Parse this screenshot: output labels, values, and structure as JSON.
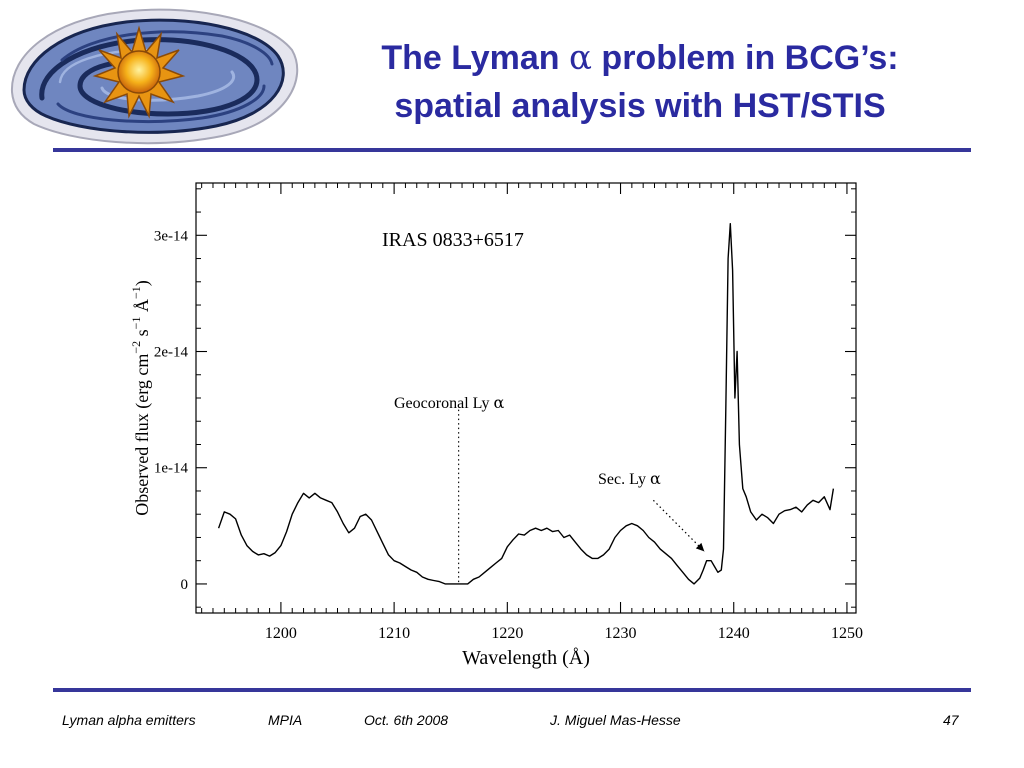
{
  "slide": {
    "title_line1_pre": "The Lyman ",
    "title_line1_symbol": "α",
    "title_line1_post": " problem in BCG’s:",
    "title_line2": "spatial analysis with HST/STIS"
  },
  "footer": {
    "topic": "Lyman alpha emitters",
    "institute": "MPIA",
    "date": "Oct. 6th 2008",
    "author": "J. Miguel Mas-Hesse",
    "page": "47"
  },
  "colors": {
    "accent": "#2a2aa0",
    "rule": "#36369a"
  },
  "chart_data": {
    "type": "line",
    "object_label": "IRAS 0833+6517",
    "xlabel": "Wavelength (Å)",
    "ylabel_parts": [
      "Observed flux (erg cm",
      "−2",
      " s",
      "−1",
      " Å",
      "−1",
      ")"
    ],
    "xlim": [
      1192.5,
      1250.8
    ],
    "ylim": [
      -2.5e-15,
      3.45e-14
    ],
    "x_ticks": [
      1200,
      1210,
      1220,
      1230,
      1240,
      1250
    ],
    "x_tick_labels": [
      "1200",
      "1210",
      "1220",
      "1230",
      "1240",
      "1250"
    ],
    "y_ticks": [
      0,
      1e-14,
      2e-14,
      3e-14
    ],
    "y_tick_labels": [
      "0",
      "1e-14",
      "2e-14",
      "3e-14"
    ],
    "annotations": [
      {
        "text": "Geocoronal Ly",
        "symbol": "α",
        "x": 1215.7,
        "line_from_y": 1.5e-14,
        "line_to_y": 0,
        "style": "dotted-vertical"
      },
      {
        "text": "Sec. Ly",
        "symbol": "α",
        "arrow_from": [
          1232.9,
          7.2e-15
        ],
        "arrow_to": [
          1237.4,
          2.8e-15
        ],
        "style": "dotted-arrow"
      }
    ],
    "grid": false,
    "legend": "none",
    "series": [
      {
        "x": [
          1194.5,
          1195.0,
          1195.5,
          1196.0,
          1196.5,
          1197.0,
          1197.5,
          1198.0,
          1198.5,
          1199.0,
          1199.5,
          1200.0,
          1200.5,
          1201.0,
          1201.5,
          1202.0,
          1202.5,
          1203.0,
          1203.5,
          1204.0,
          1204.5,
          1205.0,
          1205.5,
          1206.0,
          1206.5,
          1207.0,
          1207.5,
          1208.0,
          1208.5,
          1209.0,
          1209.5,
          1210.0,
          1210.5,
          1211.0,
          1211.5,
          1212.0,
          1212.5,
          1213.0,
          1213.5,
          1214.0,
          1214.5,
          1215.0,
          1215.5,
          1216.0,
          1216.5,
          1217.0,
          1217.5,
          1218.0,
          1218.5,
          1219.0,
          1219.5,
          1220.0,
          1220.5,
          1221.0,
          1221.5,
          1222.0,
          1222.5,
          1223.0,
          1223.5,
          1224.0,
          1224.5,
          1225.0,
          1225.5,
          1226.0,
          1226.5,
          1227.0,
          1227.5,
          1228.0,
          1228.5,
          1229.0,
          1229.5,
          1230.0,
          1230.5,
          1231.0,
          1231.5,
          1232.0,
          1232.5,
          1233.0,
          1233.5,
          1234.0,
          1234.5,
          1235.0,
          1235.5,
          1236.0,
          1236.5,
          1237.0,
          1237.3,
          1237.6,
          1238.0,
          1238.3,
          1238.6,
          1238.9,
          1239.1,
          1239.3,
          1239.5,
          1239.7,
          1239.9,
          1240.1,
          1240.3,
          1240.5,
          1240.8,
          1241.1,
          1241.5,
          1242.0,
          1242.5,
          1243.0,
          1243.5,
          1244.0,
          1244.5,
          1245.0,
          1245.5,
          1246.0,
          1246.5,
          1247.0,
          1247.5,
          1248.0,
          1248.5,
          1248.8
        ],
        "y": [
          4.8e-15,
          6.2e-15,
          6e-15,
          5.6e-15,
          4.2e-15,
          3.3e-15,
          2.8e-15,
          2.5e-15,
          2.6e-15,
          2.4e-15,
          2.7e-15,
          3.3e-15,
          4.5e-15,
          6e-15,
          7e-15,
          7.8e-15,
          7.4e-15,
          7.8e-15,
          7.4e-15,
          7.2e-15,
          7e-15,
          6.2e-15,
          5.2e-15,
          4.4e-15,
          4.8e-15,
          5.8e-15,
          6e-15,
          5.5e-15,
          4.5e-15,
          3.5e-15,
          2.5e-15,
          2e-15,
          1.8e-15,
          1.5e-15,
          1.2e-15,
          1e-15,
          6e-16,
          4e-16,
          3e-16,
          2e-16,
          0.0,
          0.0,
          0.0,
          0.0,
          0.0,
          4e-16,
          6e-16,
          1e-15,
          1.4e-15,
          1.8e-15,
          2.2e-15,
          3.2e-15,
          3.8e-15,
          4.3e-15,
          4.2e-15,
          4.6e-15,
          4.8e-15,
          4.6e-15,
          4.8e-15,
          4.5e-15,
          4.6e-15,
          4e-15,
          4.2e-15,
          3.6e-15,
          3e-15,
          2.5e-15,
          2.2e-15,
          2.2e-15,
          2.5e-15,
          3e-15,
          4e-15,
          4.6e-15,
          5e-15,
          5.2e-15,
          5e-15,
          4.6e-15,
          4e-15,
          3.6e-15,
          3e-15,
          2.6e-15,
          2.2e-15,
          1.6e-15,
          1e-15,
          4e-16,
          0.0,
          5e-16,
          1.2e-15,
          2e-15,
          2e-15,
          1.5e-15,
          1e-15,
          1.2e-15,
          3e-15,
          1.5e-14,
          2.8e-14,
          3.1e-14,
          2.7e-14,
          1.6e-14,
          2e-14,
          1.2e-14,
          8.2e-15,
          7.5e-15,
          6.2e-15,
          5.5e-15,
          6e-15,
          5.7e-15,
          5.2e-15,
          6e-15,
          6.3e-15,
          6.4e-15,
          6.6e-15,
          6.2e-15,
          6.8e-15,
          7.2e-15,
          7e-15,
          7.5e-15,
          6.4e-15,
          8.2e-15
        ]
      }
    ]
  }
}
